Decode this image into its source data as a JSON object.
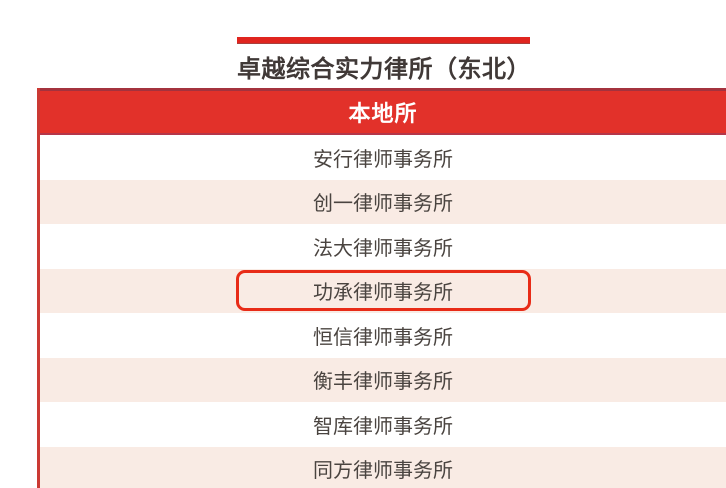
{
  "chart_data": {
    "type": "table",
    "title": "卓越综合实力律所（东北）",
    "columns": [
      "本地所"
    ],
    "rows": [
      [
        "安行律师事务所"
      ],
      [
        "创一律师事务所"
      ],
      [
        "法大律师事务所"
      ],
      [
        "功承律师事务所"
      ],
      [
        "恒信律师事务所"
      ],
      [
        "衡丰律师事务所"
      ],
      [
        "智库律师事务所"
      ],
      [
        "同方律师事务所"
      ]
    ],
    "highlighted_row": "功承律师事务所",
    "layout_hints": {
      "row_striping": "white / light-pink alternating",
      "highlight": "red rounded outline around row 4",
      "last_row_clipped": true
    }
  },
  "colors": {
    "header_band_red": "#e2312a",
    "accent_dark_red": "#a4323e",
    "left_border_red": "#cb3a34",
    "title_bar_red": "#e0251f",
    "row_pink": "#f9ebe4",
    "highlight_border_red": "#e82b17",
    "text_dark": "#4a4440",
    "header_text": "#ffffff"
  }
}
